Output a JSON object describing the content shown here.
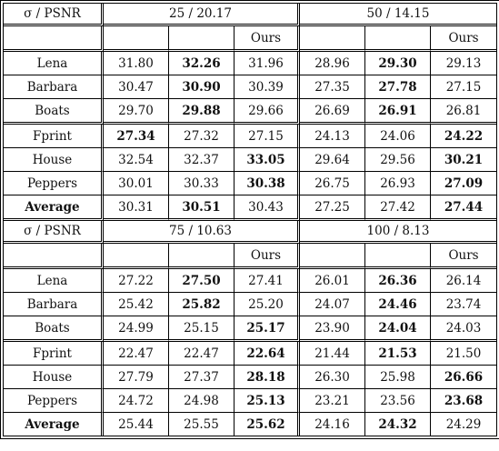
{
  "header_label": "σ / PSNR",
  "ours_label": "Ours",
  "blocks": [
    {
      "groups": [
        "25 / 20.17",
        "50 / 14.15"
      ],
      "rows": [
        {
          "name": "Lena",
          "vals": [
            "31.80",
            "32.26",
            "31.96",
            "28.96",
            "29.30",
            "29.13"
          ],
          "bold": [
            1,
            4
          ]
        },
        {
          "name": "Barbara",
          "vals": [
            "30.47",
            "30.90",
            "30.39",
            "27.35",
            "27.78",
            "27.15"
          ],
          "bold": [
            1,
            4
          ]
        },
        {
          "name": "Boats",
          "vals": [
            "29.70",
            "29.88",
            "29.66",
            "26.69",
            "26.91",
            "26.81"
          ],
          "bold": [
            1,
            4
          ]
        },
        {
          "name": "Fprint",
          "vals": [
            "27.34",
            "27.32",
            "27.15",
            "24.13",
            "24.06",
            "24.22"
          ],
          "bold": [
            0,
            5
          ]
        },
        {
          "name": "House",
          "vals": [
            "32.54",
            "32.37",
            "33.05",
            "29.64",
            "29.56",
            "30.21"
          ],
          "bold": [
            2,
            5
          ]
        },
        {
          "name": "Peppers",
          "vals": [
            "30.01",
            "30.33",
            "30.38",
            "26.75",
            "26.93",
            "27.09"
          ],
          "bold": [
            2,
            5
          ]
        },
        {
          "name": "Average",
          "vals": [
            "30.31",
            "30.51",
            "30.43",
            "27.25",
            "27.42",
            "27.44"
          ],
          "bold": [
            1,
            5
          ],
          "name_bold": true
        }
      ]
    },
    {
      "groups": [
        "75 / 10.63",
        "100 / 8.13"
      ],
      "rows": [
        {
          "name": "Lena",
          "vals": [
            "27.22",
            "27.50",
            "27.41",
            "26.01",
            "26.36",
            "26.14"
          ],
          "bold": [
            1,
            4
          ]
        },
        {
          "name": "Barbara",
          "vals": [
            "25.42",
            "25.82",
            "25.20",
            "24.07",
            "24.46",
            "23.74"
          ],
          "bold": [
            1,
            4
          ]
        },
        {
          "name": "Boats",
          "vals": [
            "24.99",
            "25.15",
            "25.17",
            "23.90",
            "24.04",
            "24.03"
          ],
          "bold": [
            2,
            4
          ]
        },
        {
          "name": "Fprint",
          "vals": [
            "22.47",
            "22.47",
            "22.64",
            "21.44",
            "21.53",
            "21.50"
          ],
          "bold": [
            2,
            4
          ]
        },
        {
          "name": "House",
          "vals": [
            "27.79",
            "27.37",
            "28.18",
            "26.30",
            "25.98",
            "26.66"
          ],
          "bold": [
            2,
            5
          ]
        },
        {
          "name": "Peppers",
          "vals": [
            "24.72",
            "24.98",
            "25.13",
            "23.21",
            "23.56",
            "23.68"
          ],
          "bold": [
            2,
            5
          ]
        },
        {
          "name": "Average",
          "vals": [
            "25.44",
            "25.55",
            "25.62",
            "24.16",
            "24.32",
            "24.29"
          ],
          "bold": [
            2,
            4
          ],
          "name_bold": true
        }
      ]
    }
  ]
}
